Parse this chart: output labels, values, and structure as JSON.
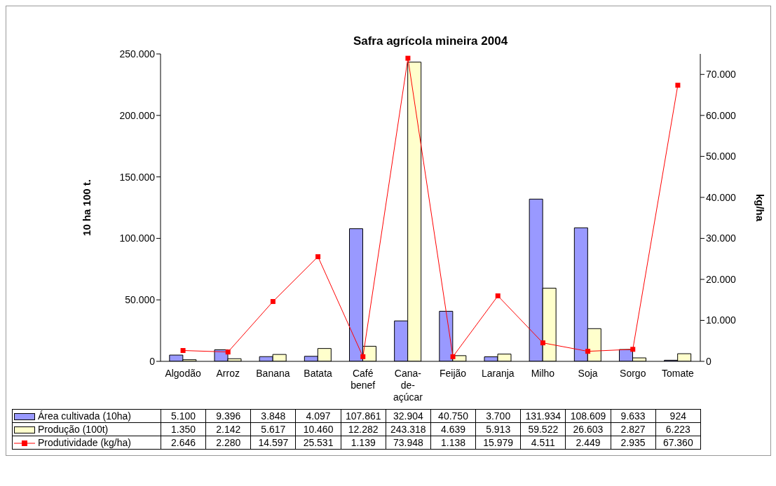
{
  "chart_data": {
    "type": "bar",
    "title": "Safra agrícola mineira 2004",
    "ylabel": "10 ha      100 t.",
    "y2label": "kg/ha",
    "categories": [
      "Algodão",
      "Arroz",
      "Banana",
      "Batata",
      "Café benef",
      "Cana-de-açúcar",
      "Feijão",
      "Laranja",
      "Milho",
      "Soja",
      "Sorgo",
      "Tomate"
    ],
    "series": [
      {
        "name": "Área cultivada (10ha)",
        "color": "#9999ff",
        "values": [
          5100,
          9396,
          3848,
          4097,
          107861,
          32904,
          40750,
          3700,
          131934,
          108609,
          9633,
          924
        ],
        "value_labels": [
          "5.100",
          "9.396",
          "3.848",
          "4.097",
          "107.861",
          "32.904",
          "40.750",
          "3.700",
          "131.934",
          "108.609",
          "9.633",
          "924"
        ]
      },
      {
        "name": "Produção (100t)",
        "color": "#ffffcc",
        "values": [
          1350,
          2142,
          5617,
          10460,
          12282,
          243318,
          4639,
          5913,
          59522,
          26603,
          2827,
          6223
        ],
        "value_labels": [
          "1.350",
          "2.142",
          "5.617",
          "10.460",
          "12.282",
          "243.318",
          "4.639",
          "5.913",
          "59.522",
          "26.603",
          "2.827",
          "6.223"
        ]
      },
      {
        "name": "Produtividade (kg/ha)",
        "type": "line",
        "axis": "y2",
        "color": "#ff0000",
        "marker": "square",
        "values": [
          2646,
          2280,
          14597,
          25531,
          1139,
          73948,
          1138,
          15979,
          4511,
          2449,
          2935,
          67360
        ],
        "value_labels": [
          "2.646",
          "2.280",
          "14.597",
          "25.531",
          "1.139",
          "73.948",
          "1.138",
          "15.979",
          "4.511",
          "2.449",
          "2.935",
          "67.360"
        ]
      }
    ],
    "ylim": [
      0,
      250000
    ],
    "yticks": [
      {
        "value": 0,
        "label": "0"
      },
      {
        "value": 50000,
        "label": "50.000"
      },
      {
        "value": 100000,
        "label": "100.000"
      },
      {
        "value": 150000,
        "label": "150.000"
      },
      {
        "value": 200000,
        "label": "200.000"
      },
      {
        "value": 250000,
        "label": "250.000"
      }
    ],
    "y2lim": [
      0,
      75000
    ],
    "y2ticks": [
      {
        "value": 0,
        "label": "0"
      },
      {
        "value": 10000,
        "label": "10.000"
      },
      {
        "value": 20000,
        "label": "20.000"
      },
      {
        "value": 30000,
        "label": "30.000"
      },
      {
        "value": 40000,
        "label": "40.000"
      },
      {
        "value": 50000,
        "label": "50.000"
      },
      {
        "value": 60000,
        "label": "60.000"
      },
      {
        "value": 70000,
        "label": "70.000"
      }
    ],
    "grid": false,
    "legend": "bottom"
  }
}
